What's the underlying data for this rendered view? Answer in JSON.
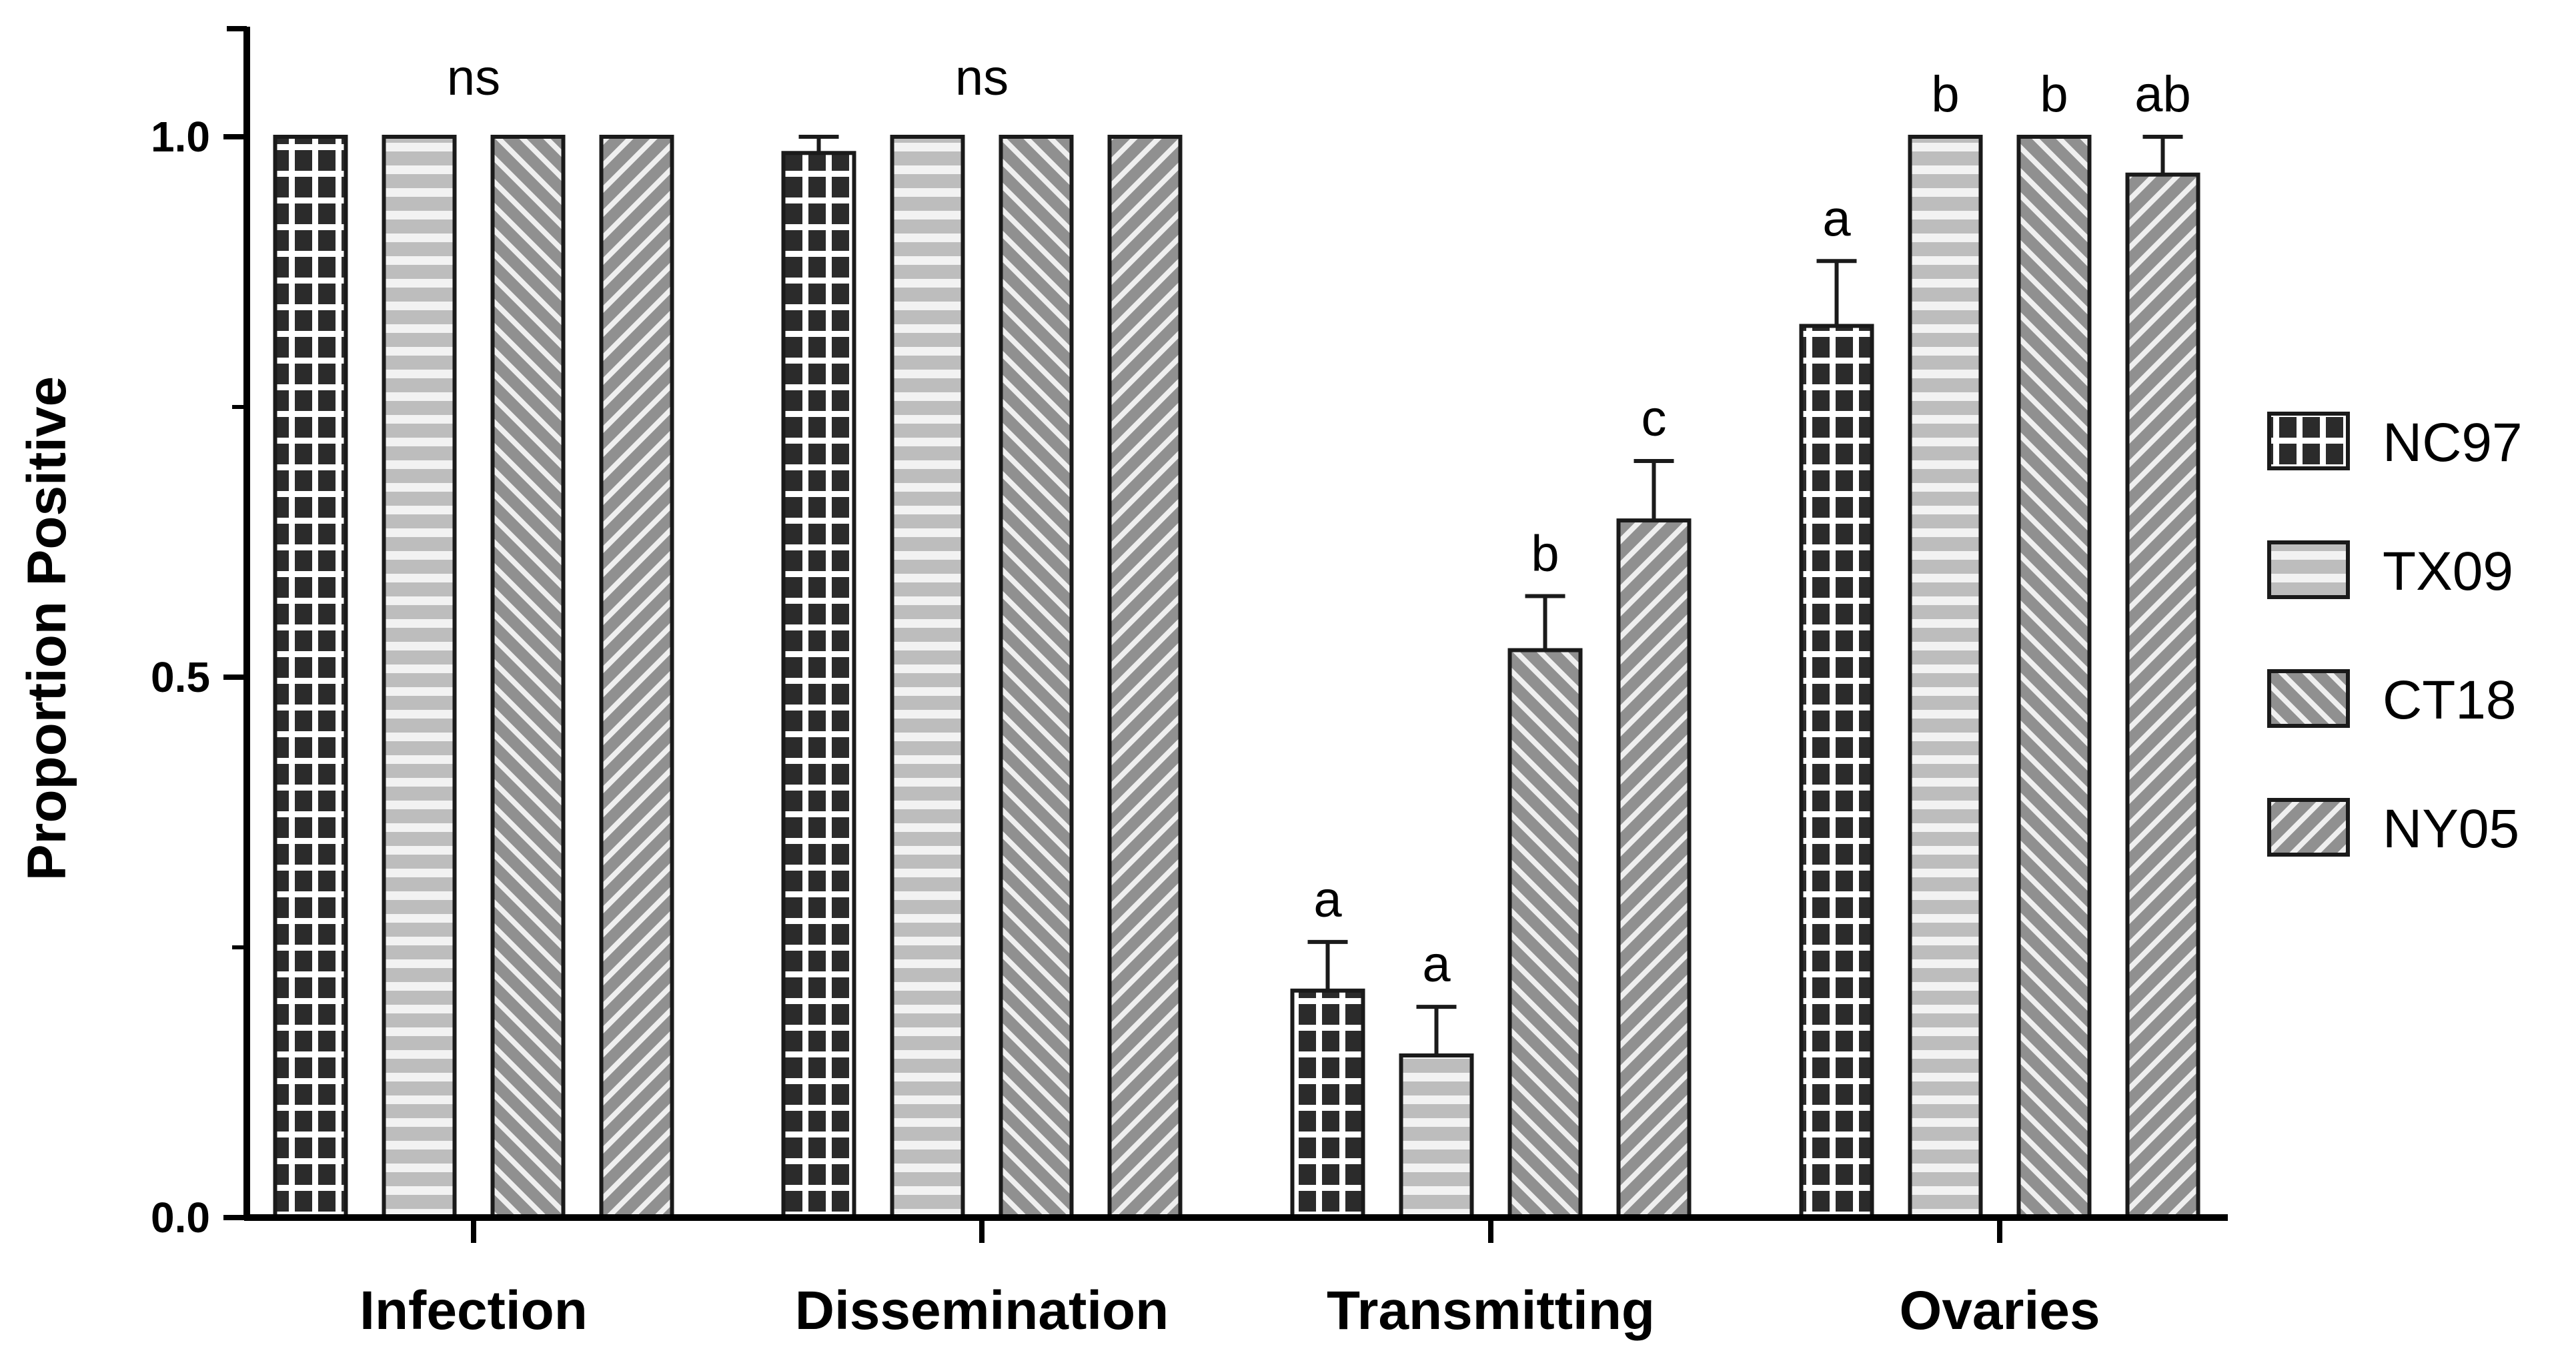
{
  "chart_data": {
    "type": "bar",
    "title": "",
    "xlabel": "",
    "ylabel": "Proportion Positive",
    "ylim": [
      0,
      1.1
    ],
    "yticks": [
      0.0,
      0.5,
      1.0
    ],
    "ytick_labels": [
      "0.0",
      "0.5",
      "1.0"
    ],
    "categories": [
      "Infection",
      "Dissemination",
      "Transmitting",
      "Ovaries"
    ],
    "series": [
      {
        "name": "NC97",
        "pattern": "grid",
        "values": [
          1.0,
          0.985,
          0.21,
          0.825
        ],
        "errors": [
          0,
          0.015,
          0.045,
          0.06
        ]
      },
      {
        "name": "TX09",
        "pattern": "horizontal",
        "values": [
          1.0,
          1.0,
          0.15,
          1.0
        ],
        "errors": [
          0,
          0,
          0.045,
          0
        ]
      },
      {
        "name": "CT18",
        "pattern": "diagonal-down",
        "values": [
          1.0,
          1.0,
          0.525,
          1.0
        ],
        "errors": [
          0,
          0,
          0.05,
          0
        ]
      },
      {
        "name": "NY05",
        "pattern": "diagonal-up",
        "values": [
          1.0,
          1.0,
          0.645,
          0.965
        ],
        "errors": [
          0,
          0,
          0.055,
          0.035
        ]
      }
    ],
    "group_annotations": [
      "ns",
      "ns",
      null,
      null
    ],
    "bar_annotations": [
      [
        null,
        null,
        "a",
        "a"
      ],
      [
        null,
        null,
        "a",
        "b"
      ],
      [
        null,
        null,
        "b",
        "b"
      ],
      [
        null,
        null,
        "c",
        "ab"
      ]
    ],
    "legend_position": "right",
    "colors": {
      "bar_dark": "#2b2b2b",
      "bar_light": "#bdbdbd",
      "bar_mid": "#909090",
      "hatch_light": "#f2f2f2",
      "edge": "#1a1a1a",
      "axis": "#000000"
    }
  }
}
